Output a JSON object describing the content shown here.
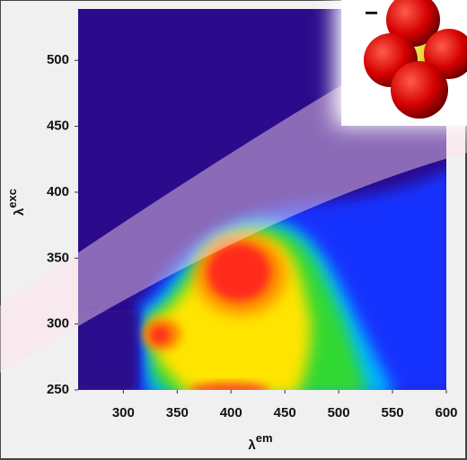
{
  "chart_data": {
    "type": "contour",
    "x_label": {
      "symbol": "λ",
      "sup": "em"
    },
    "y_label": {
      "symbol": "λ",
      "sup": "exc"
    },
    "xlim": [
      258,
      600
    ],
    "xticks": [
      300,
      350,
      400,
      450,
      500,
      550,
      600
    ],
    "ylim": [
      250,
      539
    ],
    "yticks": [
      250,
      300,
      350,
      400,
      450,
      500
    ]
  },
  "inset": {
    "label": "−"
  }
}
